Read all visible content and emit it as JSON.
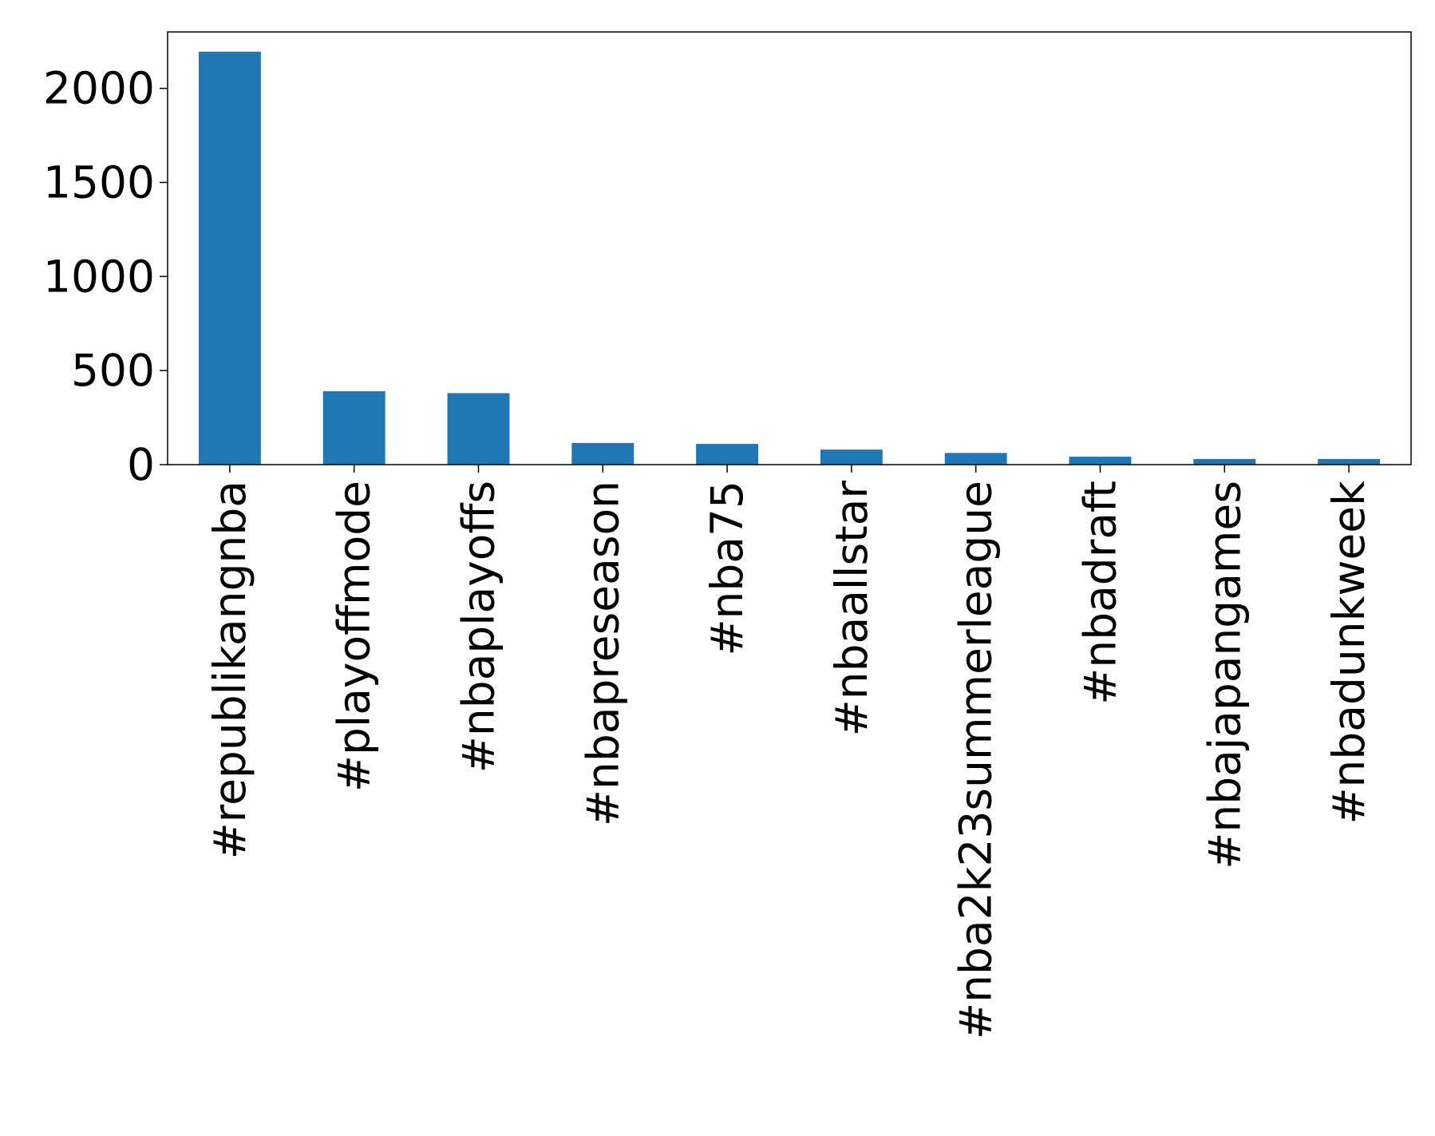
{
  "chart_data": {
    "type": "bar",
    "title": "",
    "xlabel": "",
    "ylabel": "",
    "categories": [
      "#republikangnba",
      "#playoffmode",
      "#nbaplayoffs",
      "#nbapreseason",
      "#nba75",
      "#nbaallstar",
      "#nba2k23summerleague",
      "#nbadraft",
      "#nbajapangames",
      "#nbadunkweek"
    ],
    "values": [
      2195,
      390,
      380,
      115,
      110,
      80,
      62,
      42,
      30,
      30
    ],
    "ylim": [
      0,
      2300
    ],
    "yticks": [
      0,
      500,
      1000,
      1500,
      2000
    ],
    "ytick_labels": [
      "0",
      "500",
      "1000",
      "1500",
      "2000"
    ],
    "bar_color": "#1f77b4",
    "grid": false,
    "legend": "none"
  }
}
